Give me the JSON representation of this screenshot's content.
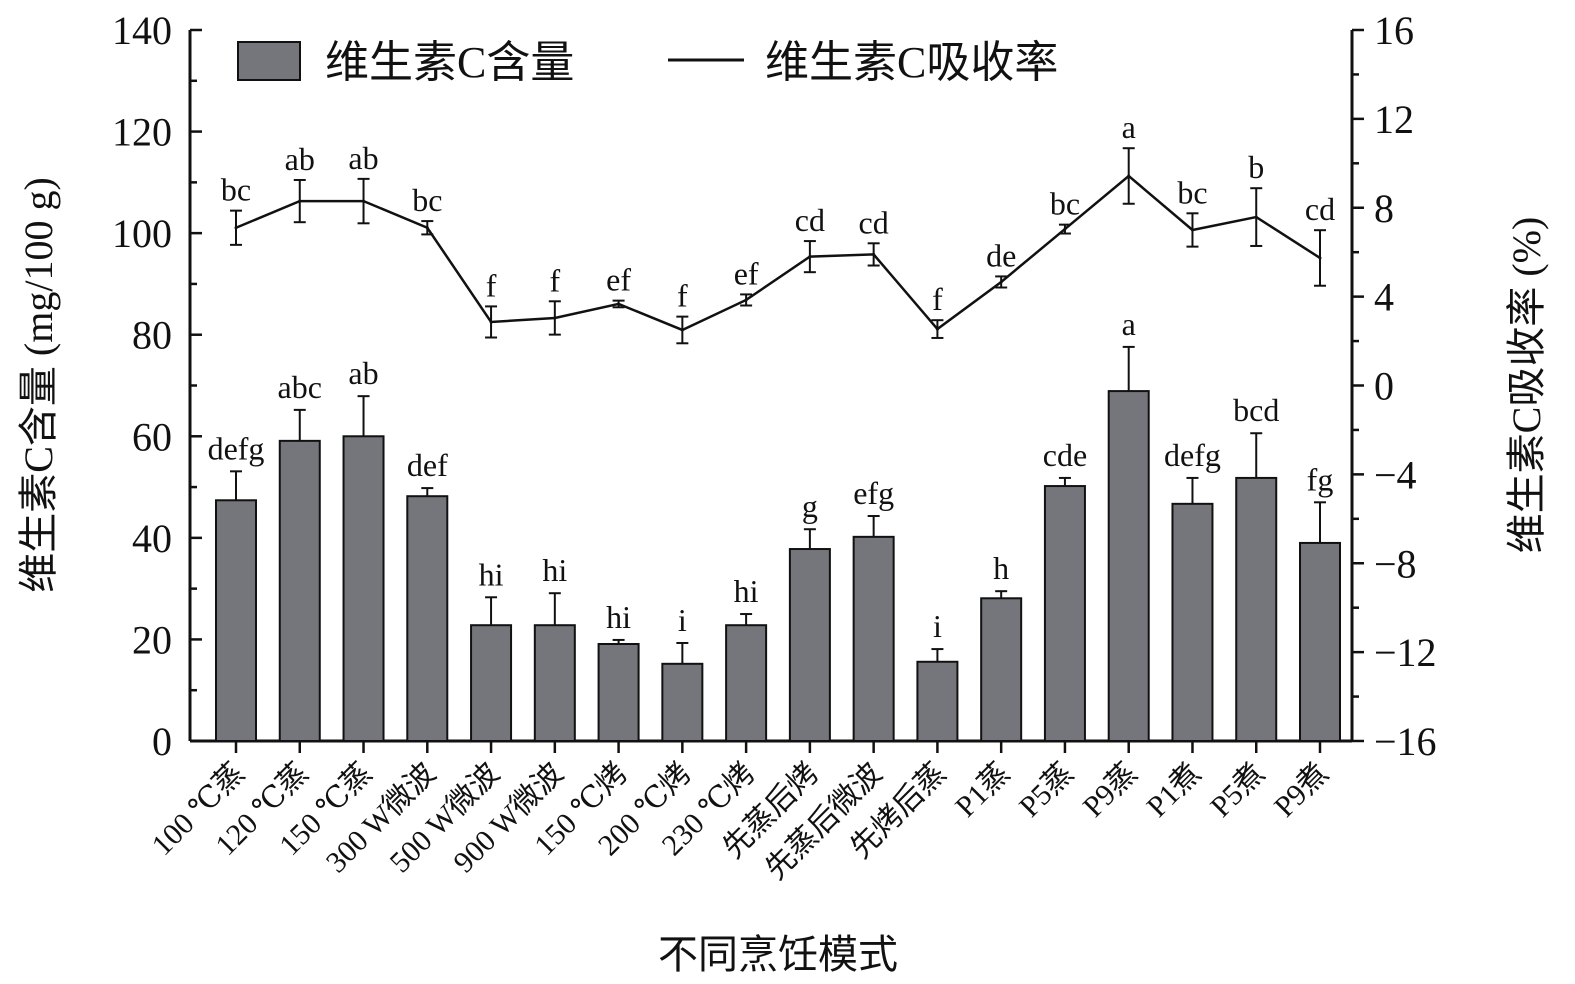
{
  "chart_data": {
    "type": "bar+line",
    "xlabel": "不同烹饪模式",
    "ylabel_left": "维生素C含量 (mg/100 g)",
    "ylabel_right": "维生素C吸收率 (%)",
    "ylim_left": [
      0,
      140
    ],
    "yticks_left": [
      0,
      20,
      40,
      60,
      80,
      100,
      120,
      140
    ],
    "ylim_right": [
      -16,
      16
    ],
    "yticks_right": [
      -16,
      -12,
      -8,
      -4,
      0,
      4,
      8,
      12,
      16
    ],
    "grid": false,
    "legend_position": "top",
    "categories": [
      "100 ℃蒸",
      "120 ℃蒸",
      "150 ℃蒸",
      "300 W微波",
      "500 W微波",
      "900 W微波",
      "150 ℃烤",
      "200 ℃烤",
      "230 ℃烤",
      "先蒸后烤",
      "先蒸后微波",
      "先烤后蒸",
      "P1蒸",
      "P5蒸",
      "P9蒸",
      "P1煮",
      "P5煮",
      "P9煮"
    ],
    "series": [
      {
        "name": "维生素C含量",
        "type": "bar",
        "axis": "left",
        "color": "#75767c",
        "values": [
          47.4,
          59.1,
          60.0,
          48.2,
          22.8,
          22.8,
          19.1,
          15.2,
          22.8,
          37.8,
          40.2,
          15.6,
          28.1,
          50.2,
          68.9,
          46.7,
          51.8,
          39.0
        ],
        "errors": [
          5.7,
          6.1,
          7.9,
          1.6,
          5.5,
          6.3,
          0.8,
          4.1,
          2.2,
          3.9,
          4.1,
          2.5,
          1.4,
          1.6,
          8.7,
          5.1,
          8.8,
          8.0
        ],
        "significance": [
          "defg",
          "abc",
          "ab",
          "def",
          "hi",
          "hi",
          "hi",
          "i",
          "hi",
          "g",
          "efg",
          "i",
          "h",
          "cde",
          "a",
          "defg",
          "bcd",
          "fg"
        ]
      },
      {
        "name": "维生素C吸收率",
        "type": "line",
        "axis": "right",
        "color": "#111111",
        "values": [
          7.1,
          8.3,
          8.3,
          7.1,
          2.86,
          3.04,
          3.67,
          2.5,
          3.85,
          5.8,
          5.9,
          2.54,
          4.66,
          7.04,
          9.43,
          7.0,
          7.58,
          5.74
        ],
        "errors": [
          0.77,
          0.95,
          1.0,
          0.3,
          0.7,
          0.75,
          0.15,
          0.6,
          0.25,
          0.7,
          0.5,
          0.4,
          0.25,
          0.2,
          1.25,
          0.75,
          1.3,
          1.25
        ],
        "significance": [
          "bc",
          "ab",
          "ab",
          "bc",
          "f",
          "f",
          "ef",
          "f",
          "ef",
          "cd",
          "cd",
          "f",
          "de",
          "bc",
          "a",
          "bc",
          "b",
          "cd"
        ]
      }
    ]
  }
}
